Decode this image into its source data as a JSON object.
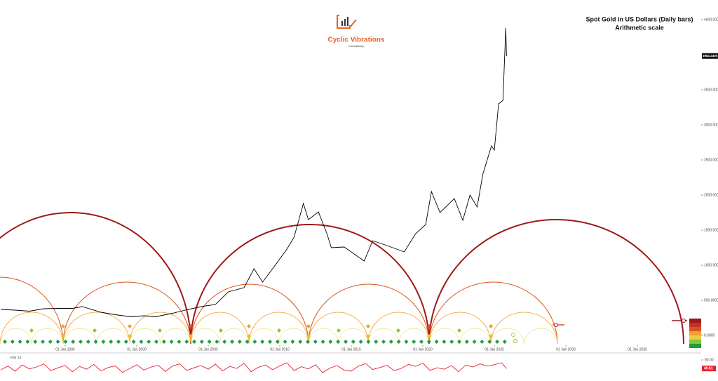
{
  "chart_data": [
    {
      "type": "line",
      "title": "Spot Gold in US Dollars (Daily bars)",
      "subtitle": "Arithmetic scale",
      "brand": "Cyclic Vibrations",
      "brand_sub": "Consultancy",
      "last_price_label": "3982.2400",
      "xlim": [
        1990.44,
        2039.46
      ],
      "xticks": [
        {
          "value": 1995,
          "label": "01 Jan 1995"
        },
        {
          "value": 2000,
          "label": "01 Jan 2000"
        },
        {
          "value": 2005,
          "label": "01 Jan 2005"
        },
        {
          "value": 2010,
          "label": "01 Jan 2010"
        },
        {
          "value": 2015,
          "label": "01 Jan 2015"
        },
        {
          "value": 2020,
          "label": "01 Jan 2020"
        },
        {
          "value": 2025,
          "label": "01 Jan 2025"
        },
        {
          "value": 2030,
          "label": "01 Jan 2030"
        },
        {
          "value": 2035,
          "label": "01 Jan 2035"
        }
      ],
      "ylim": [
        -120,
        4780
      ],
      "yticks": [
        {
          "value": 0,
          "label": "0.0000"
        },
        {
          "value": 500,
          "label": "500.0000"
        },
        {
          "value": 1000,
          "label": "1000.000"
        },
        {
          "value": 1500,
          "label": "1500.000"
        },
        {
          "value": 2000,
          "label": "2000.000"
        },
        {
          "value": 2500,
          "label": "2500.000"
        },
        {
          "value": 3000,
          "label": "3000.000"
        },
        {
          "value": 3500,
          "label": "3500.000"
        },
        {
          "value": 4500,
          "label": "4500.000"
        }
      ],
      "series": [
        {
          "name": "Spot Gold",
          "color": "#000000",
          "x": [
            1990.5,
            1991.5,
            1992.5,
            1993.5,
            1994.5,
            1995.5,
            1996.2,
            1997.5,
            1998.5,
            1999.6,
            2000.5,
            2001.3,
            2002.5,
            2003.5,
            2004.5,
            2005.5,
            2006.4,
            2007.5,
            2008.2,
            2008.8,
            2009.5,
            2010.5,
            2011.0,
            2011.65,
            2012.0,
            2012.7,
            2013.3,
            2013.6,
            2014.5,
            2015.9,
            2016.5,
            2017.5,
            2018.7,
            2019.5,
            2020.2,
            2020.6,
            2021.2,
            2022.2,
            2022.8,
            2023.3,
            2023.8,
            2024.2,
            2024.8,
            2025.0,
            2025.3,
            2025.6,
            2025.8,
            2025.85
          ],
          "values": [
            370,
            360,
            345,
            380,
            385,
            385,
            410,
            330,
            295,
            265,
            280,
            265,
            315,
            365,
            410,
            440,
            620,
            680,
            950,
            760,
            950,
            1230,
            1400,
            1880,
            1650,
            1760,
            1450,
            1250,
            1260,
            1060,
            1350,
            1280,
            1190,
            1450,
            1580,
            2050,
            1750,
            1950,
            1640,
            2000,
            1830,
            2300,
            2700,
            2640,
            3300,
            3350,
            4380,
            3982.24
          ]
        }
      ]
    },
    {
      "type": "line",
      "title": "RSI 14",
      "ylim": [
        20,
        100
      ],
      "yticks": [
        {
          "value": 80,
          "label": "80.00"
        }
      ],
      "last_value_label": "49.61",
      "series": [
        {
          "name": "RSI 14",
          "color": "#e8202a",
          "x": [
            1990.5,
            1991,
            1991.5,
            1992,
            1992.5,
            1993,
            1993.5,
            1994,
            1994.5,
            1995,
            1995.5,
            1996,
            1996.5,
            1997,
            1997.5,
            1998,
            1998.5,
            1999,
            1999.5,
            2000,
            2000.5,
            2001,
            2001.5,
            2002,
            2002.5,
            2003,
            2003.5,
            2004,
            2004.5,
            2005,
            2005.5,
            2006,
            2006.5,
            2007,
            2007.5,
            2008,
            2008.5,
            2009,
            2009.5,
            2010,
            2010.5,
            2011,
            2011.5,
            2012,
            2012.5,
            2013,
            2013.5,
            2014,
            2014.5,
            2015,
            2015.5,
            2016,
            2016.5,
            2017,
            2017.5,
            2018,
            2018.5,
            2019,
            2019.5,
            2020,
            2020.5,
            2021,
            2021.5,
            2022,
            2022.5,
            2023,
            2023.5,
            2024,
            2024.5,
            2025,
            2025.5,
            2025.85
          ],
          "values": [
            45,
            58,
            40,
            62,
            48,
            55,
            66,
            42,
            52,
            60,
            38,
            57,
            47,
            64,
            41,
            53,
            59,
            36,
            49,
            63,
            44,
            55,
            61,
            39,
            58,
            66,
            43,
            52,
            60,
            47,
            65,
            41,
            57,
            50,
            68,
            38,
            54,
            62,
            45,
            59,
            70,
            42,
            56,
            48,
            63,
            35,
            51,
            60,
            44,
            40,
            58,
            67,
            46,
            53,
            61,
            42,
            50,
            64,
            57,
            69,
            43,
            52,
            47,
            60,
            38,
            62,
            55,
            66,
            58,
            63,
            70,
            49.61
          ]
        }
      ]
    }
  ]
}
